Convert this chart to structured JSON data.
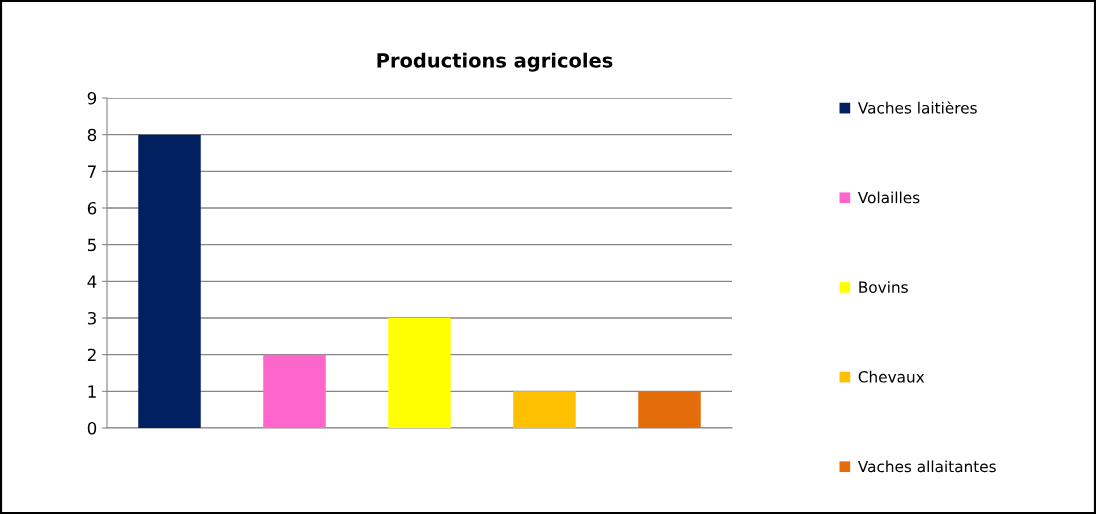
{
  "chart_data": {
    "type": "bar",
    "title": "Productions agricoles",
    "categories": [
      null,
      null,
      null,
      null,
      null
    ],
    "series": [
      {
        "name": "Vaches laitières",
        "color": "#002060",
        "values": [
          8,
          null,
          null,
          null,
          null
        ]
      },
      {
        "name": "Volailles",
        "color": "#ff66cc",
        "values": [
          null,
          2,
          null,
          null,
          null
        ]
      },
      {
        "name": "Bovins",
        "color": "#ffff00",
        "values": [
          null,
          null,
          3,
          null,
          null
        ]
      },
      {
        "name": "Chevaux",
        "color": "#ffc000",
        "values": [
          null,
          null,
          null,
          1,
          null
        ]
      },
      {
        "name": "Vaches allaitantes",
        "color": "#e46c0a",
        "values": [
          null,
          null,
          null,
          null,
          1
        ]
      }
    ],
    "ylim": [
      0,
      9
    ],
    "yticks": [
      0,
      1,
      2,
      3,
      4,
      5,
      6,
      7,
      8,
      9
    ],
    "grid": "y",
    "legend": "right",
    "tick_labels": "y"
  }
}
